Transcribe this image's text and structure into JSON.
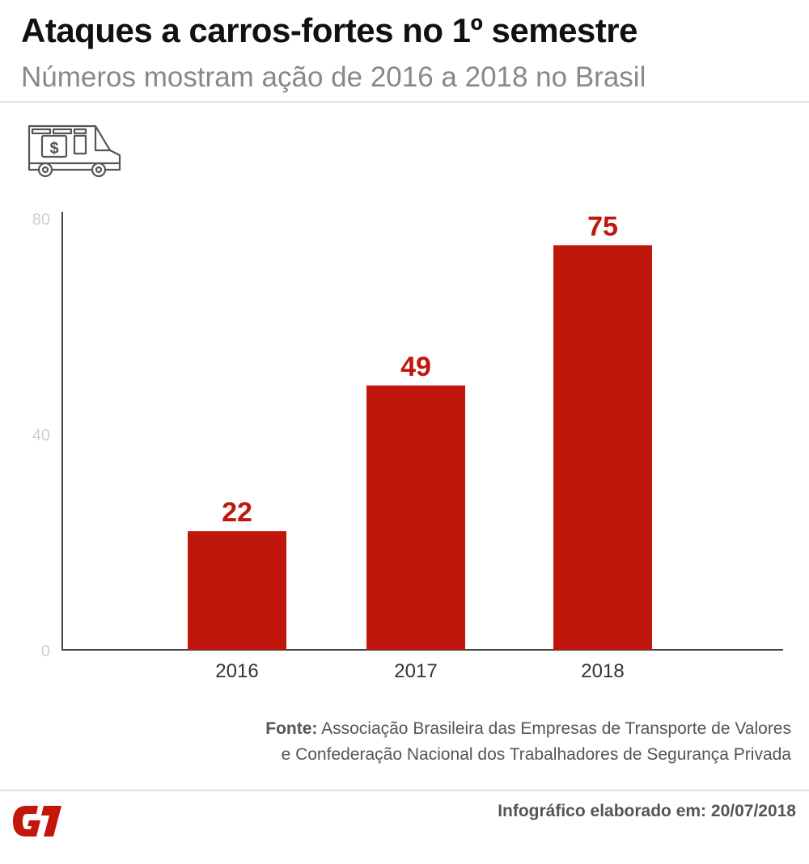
{
  "header": {
    "title": "Ataques a carros-fortes no 1º semestre",
    "subtitle": "Números mostram ação de 2016 a 2018 no Brasil"
  },
  "icon": "armored-van-icon",
  "chart_data": {
    "type": "bar",
    "title": "",
    "xlabel": "",
    "ylabel": "",
    "categories": [
      "2016",
      "2017",
      "2018"
    ],
    "values": [
      22,
      49,
      75
    ],
    "data_labels": [
      "22",
      "49",
      "75"
    ],
    "ylim": [
      0,
      80
    ],
    "yticks": [
      "0",
      "40",
      "80"
    ],
    "grid": false,
    "bar_color": "#c0170d",
    "label_color": "#c0170d"
  },
  "source": {
    "label": "Fonte:",
    "line1": "Associação Brasileira das Empresas de Transporte de Valores",
    "line2": "e Confederação Nacional dos Trabalhadores de Segurança Privada"
  },
  "footer": {
    "logo": "G1",
    "credit": "Infográfico elaborado em: 20/07/2018"
  }
}
